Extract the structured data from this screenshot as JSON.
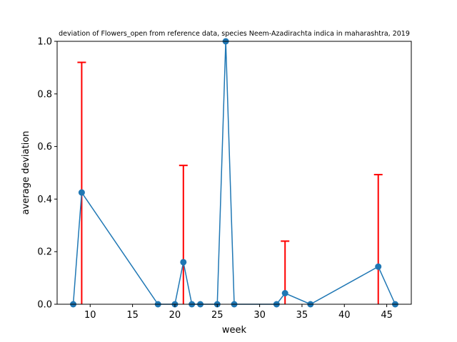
{
  "chart_data": {
    "type": "line",
    "title": "deviation of Flowers_open from reference data, species Neem-Azadirachta indica in maharashtra, 2019",
    "xlabel": "week",
    "ylabel": "average deviation",
    "xlim": [
      6.1,
      47.9
    ],
    "ylim": [
      0.0,
      1.0
    ],
    "xticks": [
      10,
      15,
      20,
      25,
      30,
      35,
      40,
      45
    ],
    "yticks": [
      0.0,
      0.2,
      0.4,
      0.6,
      0.8,
      1.0
    ],
    "xtick_labels": [
      "10",
      "15",
      "20",
      "25",
      "30",
      "35",
      "40",
      "45"
    ],
    "ytick_labels": [
      "0.0",
      "0.2",
      "0.4",
      "0.6",
      "0.8",
      "1.0"
    ],
    "grid": false,
    "line_color": "#1f77b4",
    "errorbar_color": "#ff0000",
    "series": [
      {
        "x": [
          8,
          9,
          18,
          20,
          21,
          22,
          23,
          25,
          26,
          27,
          32,
          33,
          36,
          44,
          46
        ],
        "y": [
          0.0,
          0.425,
          0.0,
          0.0,
          0.16,
          0.0,
          0.0,
          0.0,
          1.0,
          0.0,
          0.0,
          0.042,
          0.0,
          0.143,
          0.0
        ],
        "yerr": [
          0.0,
          0.495,
          0.0,
          0.0,
          0.368,
          0.0,
          0.0,
          0.0,
          0.0,
          0.0,
          0.0,
          0.198,
          0.0,
          0.35,
          0.0
        ]
      }
    ]
  }
}
